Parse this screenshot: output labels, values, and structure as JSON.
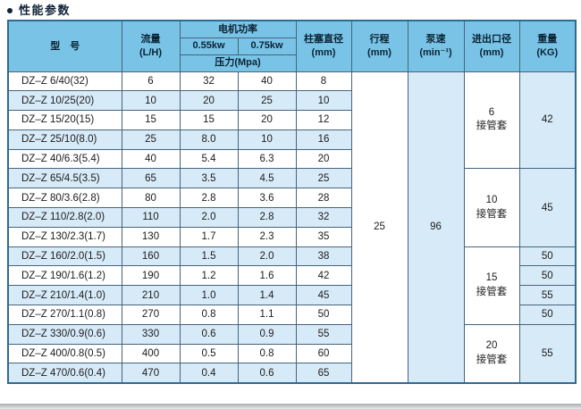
{
  "section": {
    "title": "性能参数"
  },
  "colors": {
    "header_bg": "#79c3e6",
    "stripe_bg": "#d7eaf8",
    "border": "#46647c",
    "outer_border": "#2f6a94",
    "title_text": "#0e2438"
  },
  "table": {
    "headers": {
      "model": "型　号",
      "flow_line1": "流量",
      "flow_line2": "(L/H)",
      "motor_power": "电机功率",
      "kw055": "0.55kw",
      "kw075": "0.75kw",
      "pressure": "压力(Mpa)",
      "plunger_line1": "柱塞直径",
      "plunger_line2": "(mm)",
      "stroke_line1": "行程",
      "stroke_line2": "(mm)",
      "speed_line1": "泵速",
      "speed_line2": "(min⁻¹)",
      "port_line1": "进出口径",
      "port_line2": "(mm)",
      "weight_line1": "重量",
      "weight_line2": "(KG)"
    },
    "rows": [
      {
        "model": "DZ–Z 6/40(32)",
        "flow": "6",
        "p055": "32",
        "p075": "40",
        "plunger": "8"
      },
      {
        "model": "DZ–Z 10/25(20)",
        "flow": "10",
        "p055": "20",
        "p075": "25",
        "plunger": "10"
      },
      {
        "model": "DZ–Z 15/20(15)",
        "flow": "15",
        "p055": "15",
        "p075": "20",
        "plunger": "12"
      },
      {
        "model": "DZ–Z 25/10(8.0)",
        "flow": "25",
        "p055": "8.0",
        "p075": "10",
        "plunger": "16"
      },
      {
        "model": "DZ–Z 40/6.3(5.4)",
        "flow": "40",
        "p055": "5.4",
        "p075": "6.3",
        "plunger": "20"
      },
      {
        "model": "DZ–Z 65/4.5(3.5)",
        "flow": "65",
        "p055": "3.5",
        "p075": "4.5",
        "plunger": "25"
      },
      {
        "model": "DZ–Z 80/3.6(2.8)",
        "flow": "80",
        "p055": "2.8",
        "p075": "3.6",
        "plunger": "28"
      },
      {
        "model": "DZ–Z 110/2.8(2.0)",
        "flow": "110",
        "p055": "2.0",
        "p075": "2.8",
        "plunger": "32"
      },
      {
        "model": "DZ–Z 130/2.3(1.7)",
        "flow": "130",
        "p055": "1.7",
        "p075": "2.3",
        "plunger": "35"
      },
      {
        "model": "DZ–Z 160/2.0(1.5)",
        "flow": "160",
        "p055": "1.5",
        "p075": "2.0",
        "plunger": "38"
      },
      {
        "model": "DZ–Z 190/1.6(1.2)",
        "flow": "190",
        "p055": "1.2",
        "p075": "1.6",
        "plunger": "42"
      },
      {
        "model": "DZ–Z 210/1.4(1.0)",
        "flow": "210",
        "p055": "1.0",
        "p075": "1.4",
        "plunger": "45"
      },
      {
        "model": "DZ–Z 270/1.1(0.8)",
        "flow": "270",
        "p055": "0.8",
        "p075": "1.1",
        "plunger": "50"
      },
      {
        "model": "DZ–Z 330/0.9(0.6)",
        "flow": "330",
        "p055": "0.6",
        "p075": "0.9",
        "plunger": "55"
      },
      {
        "model": "DZ–Z 400/0.8(0.5)",
        "flow": "400",
        "p055": "0.5",
        "p075": "0.8",
        "plunger": "60"
      },
      {
        "model": "DZ–Z 470/0.6(0.4)",
        "flow": "470",
        "p055": "0.4",
        "p075": "0.6",
        "plunger": "65"
      }
    ],
    "merged": {
      "stroke": "25",
      "speed": "96",
      "port_groups": [
        {
          "size": "6",
          "fitting": "接管套",
          "span": 5
        },
        {
          "size": "10",
          "fitting": "接管套",
          "span": 4
        },
        {
          "size": "15",
          "fitting": "接管套",
          "span": 4
        },
        {
          "size": "20",
          "fitting": "接管套",
          "span": 3
        }
      ],
      "weights": [
        {
          "value": "42",
          "span": 5
        },
        {
          "value": "45",
          "span": 4
        },
        {
          "value": "50",
          "span": 1
        },
        {
          "value": "50",
          "span": 1
        },
        {
          "value": "55",
          "span": 1
        },
        {
          "value": "50",
          "span": 1
        },
        {
          "value": "55",
          "span": 3
        }
      ]
    }
  }
}
